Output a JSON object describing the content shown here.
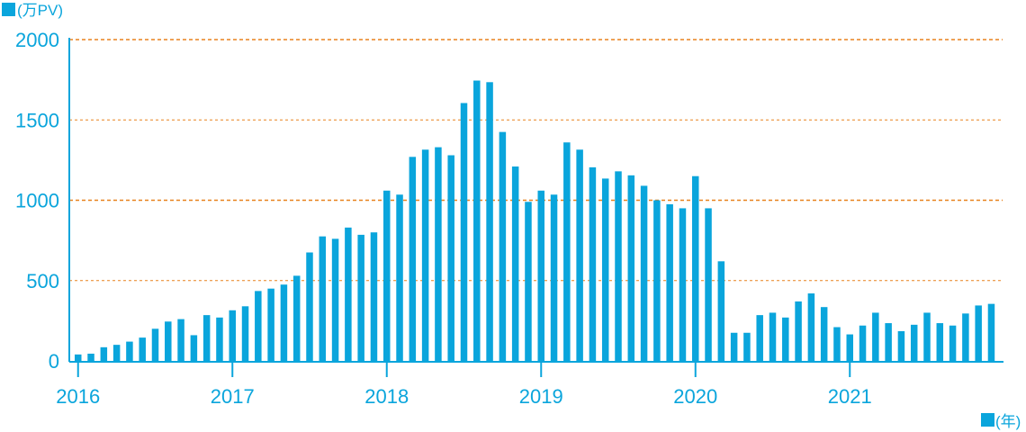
{
  "chart_data": {
    "type": "bar",
    "y_unit_label": "(万PV)",
    "x_unit_label": "(年)",
    "ylim": [
      0,
      2000
    ],
    "y_ticks": [
      0,
      500,
      1000,
      1500,
      2000
    ],
    "year_labels": [
      "2016",
      "2017",
      "2018",
      "2019",
      "2020",
      "2021"
    ],
    "months_per_year": 12,
    "values": [
      40,
      45,
      85,
      100,
      120,
      145,
      200,
      245,
      260,
      160,
      285,
      270,
      315,
      340,
      435,
      450,
      475,
      530,
      675,
      775,
      760,
      830,
      785,
      800,
      1060,
      1035,
      1270,
      1315,
      1330,
      1280,
      1605,
      1745,
      1735,
      1425,
      1210,
      990,
      1060,
      1035,
      1360,
      1315,
      1205,
      1135,
      1180,
      1155,
      1090,
      1000,
      975,
      950,
      1150,
      950,
      620,
      175,
      175,
      285,
      300,
      270,
      370,
      420,
      335,
      210,
      165,
      220,
      300,
      235,
      185,
      225,
      300,
      235,
      220,
      295,
      345,
      355
    ],
    "colors": {
      "bar": "#0aa5dc",
      "grid": "#e8821e",
      "axis": "#0aa5dc",
      "text": "#0aa5dc"
    }
  }
}
